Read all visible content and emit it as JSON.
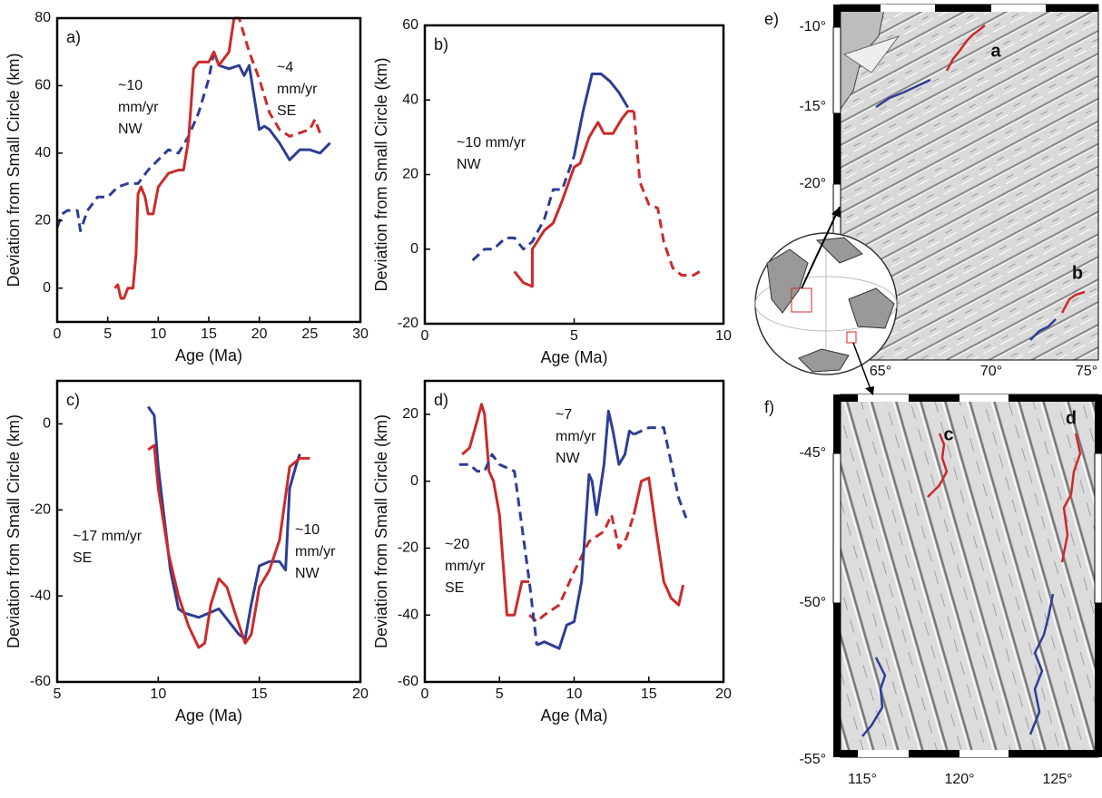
{
  "chart_data": [
    {
      "type": "line",
      "label": "a)",
      "xlabel": "Age (Ma)",
      "ylabel": "Deviation from Small Circle (km)",
      "annotations": [
        {
          "lines": [
            "~10",
            "mm/yr",
            "NW"
          ]
        },
        {
          "lines": [
            "~4",
            "mm/yr",
            "SE"
          ]
        }
      ],
      "xlim": [
        0,
        30
      ],
      "xticks": [
        0,
        5,
        10,
        15,
        20,
        25,
        30
      ],
      "ylim": [
        -10,
        80
      ],
      "yticks": [
        0,
        20,
        40,
        60,
        80
      ],
      "series": [
        {
          "color": "#2e3d94",
          "dashed": true,
          "x": [
            0,
            0.5,
            1,
            2,
            2.3,
            3,
            4,
            5,
            6,
            7,
            8,
            9,
            10,
            11,
            12,
            13,
            14,
            15,
            15.5
          ],
          "values": [
            18,
            22,
            23,
            23,
            17,
            23,
            27,
            27,
            30,
            31,
            31,
            35,
            38,
            41,
            40,
            45,
            52,
            62,
            70
          ]
        },
        {
          "color": "#2e3d94",
          "dashed": false,
          "x": [
            15.5,
            16,
            17,
            18,
            18.5,
            19,
            20,
            20.5,
            21,
            22,
            23,
            24,
            25,
            26,
            27
          ],
          "values": [
            70,
            66,
            65,
            66,
            63,
            66,
            47,
            48,
            47,
            43,
            38,
            41,
            41,
            40,
            43
          ]
        },
        {
          "color": "#cc2a2a",
          "dashed": false,
          "x": [
            5.7,
            6,
            6.3,
            6.6,
            7,
            7.5,
            7.8,
            8,
            8.3,
            8.7,
            9,
            9.5,
            10,
            11,
            12,
            12.5,
            13,
            13.5,
            14,
            15,
            15.5,
            16,
            17,
            17.5
          ],
          "values": [
            0,
            1,
            -3,
            -3,
            0,
            0,
            10,
            28,
            30,
            27,
            22,
            22,
            30,
            34,
            35,
            35,
            44,
            65,
            67,
            67,
            70,
            66,
            70,
            80
          ]
        },
        {
          "color": "#cc2a2a",
          "dashed": true,
          "x": [
            17.5,
            18,
            19,
            20,
            21,
            22,
            23,
            24,
            25,
            25.5,
            26
          ],
          "values": [
            80,
            80,
            70,
            62,
            52,
            47,
            45,
            46,
            47,
            50,
            46
          ]
        }
      ]
    },
    {
      "type": "line",
      "label": "b)",
      "xlabel": "Age (Ma)",
      "ylabel": "Deviation from Small Circle (km)",
      "annotations": [
        {
          "lines": [
            "~10 mm/yr",
            "NW"
          ]
        }
      ],
      "xlim": [
        0,
        10
      ],
      "xticks": [
        0,
        5,
        10
      ],
      "ylim": [
        -20,
        60
      ],
      "yticks": [
        -20,
        0,
        20,
        40,
        60
      ],
      "series": [
        {
          "color": "#2e3d94",
          "dashed": true,
          "x": [
            1.6,
            2,
            2.3,
            2.7,
            3,
            3.3,
            3.6,
            4,
            4.3,
            4.6,
            5
          ],
          "values": [
            -3,
            0,
            0,
            3,
            3,
            0,
            2,
            8,
            16,
            16,
            25
          ]
        },
        {
          "color": "#2e3d94",
          "dashed": false,
          "x": [
            5,
            5.3,
            5.6,
            5.9,
            6.2,
            6.5,
            6.8
          ],
          "values": [
            25,
            37,
            47,
            47,
            45,
            42,
            38
          ]
        },
        {
          "color": "#cc2a2a",
          "dashed": false,
          "x": [
            3,
            3.3,
            3.6,
            3.6,
            4,
            4.3,
            4.6,
            5,
            5.2,
            5.5,
            5.8,
            6,
            6.3,
            6.6,
            6.8,
            7
          ],
          "values": [
            -6,
            -9,
            -10,
            0,
            5,
            7,
            13,
            22,
            23,
            30,
            34,
            31,
            31,
            35,
            37,
            37
          ]
        },
        {
          "color": "#cc2a2a",
          "dashed": true,
          "x": [
            7,
            7.2,
            7.5,
            7.8,
            8,
            8.3,
            8.6,
            9,
            9.2
          ],
          "values": [
            37,
            18,
            12,
            11,
            2,
            -5,
            -7,
            -7,
            -6
          ]
        }
      ]
    },
    {
      "type": "line",
      "label": "c)",
      "xlabel": "Age (Ma)",
      "ylabel": "Deviation from Small Circle (km)",
      "annotations": [
        {
          "lines": [
            "~17 mm/yr",
            "SE"
          ]
        },
        {
          "lines": [
            "~10",
            "mm/yr",
            "NW"
          ]
        }
      ],
      "xlim": [
        5,
        20
      ],
      "xticks": [
        5,
        10,
        15,
        20
      ],
      "ylim": [
        -60,
        10
      ],
      "yticks": [
        -60,
        -40,
        -20,
        0
      ],
      "series": [
        {
          "color": "#2e3d94",
          "dashed": false,
          "x": [
            9.5,
            9.8,
            10,
            10.3,
            10.6,
            11,
            11.3,
            12,
            13,
            13.5,
            14,
            14.3,
            14.6,
            15,
            15.5,
            16,
            16.3,
            16.5,
            16.8,
            17
          ],
          "values": [
            4,
            2,
            -10,
            -22,
            -34,
            -43,
            -44,
            -45,
            -43,
            -46,
            -49,
            -50,
            -42,
            -33,
            -32,
            -32,
            -34,
            -15,
            -10,
            -7
          ]
        },
        {
          "color": "#cc2a2a",
          "dashed": false,
          "x": [
            9.5,
            9.8,
            10,
            10.5,
            11,
            11.5,
            12,
            12.3,
            12.6,
            13,
            13.4,
            13.8,
            14.3,
            14.6,
            15,
            15.5,
            16,
            16.5,
            17,
            17.5
          ],
          "values": [
            -6,
            -5,
            -15,
            -30,
            -40,
            -47,
            -52,
            -51,
            -42,
            -36,
            -38,
            -44,
            -51,
            -49,
            -38,
            -34,
            -27,
            -10,
            -8,
            -8
          ]
        }
      ]
    },
    {
      "type": "line",
      "label": "d)",
      "xlabel": "Age (Ma)",
      "ylabel": "Deviation from Small Circle (km)",
      "annotations": [
        {
          "lines": [
            "~7",
            "mm/yr",
            "NW"
          ]
        },
        {
          "lines": [
            "~20",
            "mm/yr",
            "SE"
          ]
        }
      ],
      "xlim": [
        0,
        20
      ],
      "xticks": [
        0,
        5,
        10,
        15,
        20
      ],
      "ylim": [
        -60,
        30
      ],
      "yticks": [
        -60,
        -40,
        -20,
        0,
        20
      ],
      "series": [
        {
          "color": "#cc2a2a",
          "dashed": false,
          "x": [
            2.5,
            3,
            3.5,
            3.8,
            4,
            4.3,
            4.6,
            5,
            5.5,
            6,
            6.5,
            7
          ],
          "values": [
            8,
            10,
            18,
            23,
            20,
            3,
            0,
            -10,
            -40,
            -40,
            -30,
            -30
          ]
        },
        {
          "color": "#cc2a2a",
          "dashed": true,
          "x": [
            7,
            7.5,
            8,
            9,
            10,
            11,
            12,
            12.5,
            13,
            13.5,
            14
          ],
          "values": [
            -40,
            -42,
            -40,
            -37,
            -27,
            -18,
            -15,
            -10,
            -20,
            -17,
            -10
          ]
        },
        {
          "color": "#cc2a2a",
          "dashed": false,
          "x": [
            14,
            14.5,
            15,
            15.5,
            16,
            16.5,
            17,
            17.3
          ],
          "values": [
            -10,
            0,
            1,
            -15,
            -30,
            -35,
            -37,
            -31
          ]
        },
        {
          "color": "#2e3d94",
          "dashed": true,
          "x": [
            2.3,
            3,
            3.5,
            4,
            4.5,
            5,
            6,
            7,
            7.5
          ],
          "values": [
            5,
            5,
            3,
            3,
            8,
            5,
            3,
            -30,
            -49
          ]
        },
        {
          "color": "#2e3d94",
          "dashed": false,
          "x": [
            7.5,
            8,
            9,
            9.5,
            10,
            10.5,
            11,
            11.2,
            11.5,
            12,
            12.3,
            12.6,
            13,
            13.4,
            13.7,
            14
          ],
          "values": [
            -49,
            -48,
            -50,
            -43,
            -42,
            -30,
            2,
            0,
            -10,
            5,
            21,
            15,
            5,
            8,
            15,
            14
          ]
        },
        {
          "color": "#2e3d94",
          "dashed": true,
          "x": [
            14,
            15,
            16,
            17,
            17.5
          ],
          "values": [
            14,
            16,
            16,
            -5,
            -11
          ]
        }
      ]
    }
  ],
  "maps": [
    {
      "label": "e)",
      "lat_labels": [
        "-10°",
        "-15°",
        "-20°"
      ],
      "lon_labels": [
        "65°",
        "70°",
        "75°"
      ],
      "site_labels": [
        "a",
        "b"
      ]
    },
    {
      "label": "f)",
      "lat_labels": [
        "-45°",
        "-50°",
        "-55°"
      ],
      "lon_labels": [
        "115°",
        "120°",
        "125°"
      ],
      "site_labels": [
        "c",
        "d"
      ]
    }
  ]
}
